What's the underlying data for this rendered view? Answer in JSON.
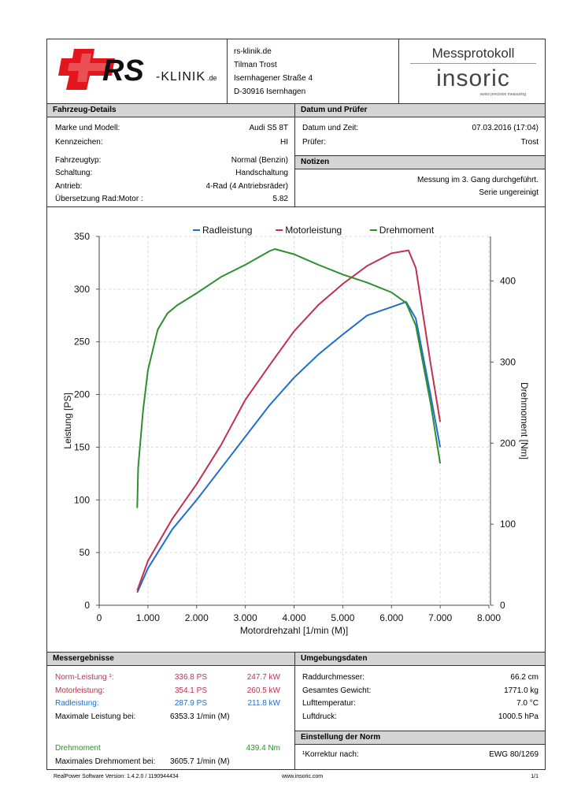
{
  "header": {
    "logo_text": "RS-KLINIK.de",
    "address": [
      "rs-klinik.de",
      "Tilman Trost",
      "Isernhagener Straße 4",
      "D-30916 Isernhagen"
    ],
    "protocol_title": "Messprotokoll",
    "brand": "insoric",
    "brand_tagline": "swiss precision measuring"
  },
  "vehicle": {
    "title": "Fahrzeug-Details",
    "rows": [
      {
        "label": "Marke und Modell:",
        "value": "Audi S5 8T"
      },
      {
        "label": "Kennzeichen:",
        "value": "HI"
      },
      {
        "label": "Fahrzeugtyp:",
        "value": "Normal (Benzin)"
      },
      {
        "label": "Schaltung:",
        "value": "Handschaltung"
      },
      {
        "label": "Antrieb:",
        "value": "4-Rad (4 Antriebsräder)"
      },
      {
        "label": "Übersetzung Rad:Motor :",
        "value": "5.82"
      }
    ]
  },
  "date_section": {
    "title": "Datum und Prüfer",
    "rows": [
      {
        "label": "Datum und Zeit:",
        "value": "07.03.2016 (17:04)"
      },
      {
        "label": "Prüfer:",
        "value": "Trost"
      }
    ]
  },
  "notes": {
    "title": "Notizen",
    "lines": [
      "Messung im 3. Gang durchgeführt.",
      "Serie ungereinigt"
    ]
  },
  "chart_data": {
    "type": "line",
    "xlabel": "Motordrehzahl [1/min (M)]",
    "ylabel": "Leistung [PS]",
    "y2label": "Drehmoment [Nm]",
    "xlim": [
      0,
      8000
    ],
    "ylim": [
      0,
      350
    ],
    "y2lim": [
      0,
      455
    ],
    "x_ticks": [
      "0",
      "1.000",
      "2.000",
      "3.000",
      "4.000",
      "5.000",
      "6.000",
      "7.000",
      "8.000"
    ],
    "y_ticks": [
      "0",
      "50",
      "100",
      "150",
      "200",
      "250",
      "300",
      "350"
    ],
    "y2_ticks": [
      "0",
      "100",
      "200",
      "300",
      "400"
    ],
    "legend_position": "top",
    "grid": true,
    "series": [
      {
        "name": "Radleistung",
        "color": "#1f6fce",
        "axis": "left",
        "x": [
          780,
          1000,
          1500,
          2000,
          2500,
          3000,
          3500,
          4000,
          4500,
          5000,
          5500,
          6000,
          6300,
          6500,
          6800,
          7000
        ],
        "y": [
          12,
          35,
          72,
          100,
          130,
          160,
          190,
          216,
          238,
          257,
          275,
          283,
          287.9,
          272,
          200,
          150
        ]
      },
      {
        "name": "Motorleistung",
        "color": "#c0304f",
        "axis": "left",
        "x": [
          780,
          1000,
          1500,
          2000,
          2500,
          3000,
          3500,
          4000,
          4500,
          5000,
          5500,
          6000,
          6350,
          6500,
          6800,
          7000
        ],
        "y": [
          14,
          42,
          82,
          115,
          152,
          195,
          228,
          260,
          285,
          305,
          322,
          334,
          336.8,
          320,
          230,
          174
        ]
      },
      {
        "name": "Drehmoment",
        "color": "#2d8f2d",
        "axis": "right",
        "x": [
          780,
          800,
          900,
          1000,
          1200,
          1400,
          1600,
          2000,
          2500,
          3000,
          3500,
          3605,
          4000,
          4500,
          5000,
          5500,
          6000,
          6300,
          6500,
          6800,
          7000
        ],
        "y": [
          120,
          170,
          240,
          290,
          340,
          360,
          370,
          385,
          405,
          420,
          437,
          439.4,
          433,
          420,
          408,
          398,
          386,
          373,
          345,
          250,
          175
        ]
      }
    ]
  },
  "results": {
    "title": "Messergebnisse",
    "norm": {
      "label": "Norm-Leistung ¹:",
      "ps": "336.8 PS",
      "kw": "247.7 kW"
    },
    "motor": {
      "label": "Motorleistung:",
      "ps": "354.1 PS",
      "kw": "260.5 kW"
    },
    "rad": {
      "label": "Radleistung:",
      "ps": "287.9 PS",
      "kw": "211.8 kW"
    },
    "max_power": {
      "label": "Maximale Leistung bei:",
      "value": "6353.3 1/min (M)"
    },
    "torque": {
      "label": "Drehmoment",
      "value": "439.4 Nm"
    },
    "max_torque": {
      "label": "Maximales Drehmoment bei:",
      "value": "3605.7 1/min (M)"
    }
  },
  "environment": {
    "title": "Umgebungsdaten",
    "rows": [
      {
        "label": "Raddurchmesser:",
        "value": "66.2 cm"
      },
      {
        "label": "Gesamtes Gewicht:",
        "value": "1771.0 kg"
      },
      {
        "label": "Lufttemperatur:",
        "value": "7.0 °C"
      },
      {
        "label": "Luftdruck:",
        "value": "1000.5 hPa"
      }
    ]
  },
  "norm_setting": {
    "title": "Einstellung der Norm",
    "label": "¹Korrektur nach:",
    "value": "EWG 80/1269"
  },
  "footer": {
    "software": "RealPower Software Version: 1.4.2.0 / 1190944434",
    "url": "www.insoric.com",
    "page": "1/1"
  },
  "colors": {
    "rad": "#1f6fce",
    "motor": "#c0304f",
    "torque": "#2d8f2d",
    "header_bg": "#d4d4d4",
    "logo_red": "#e3161d"
  }
}
